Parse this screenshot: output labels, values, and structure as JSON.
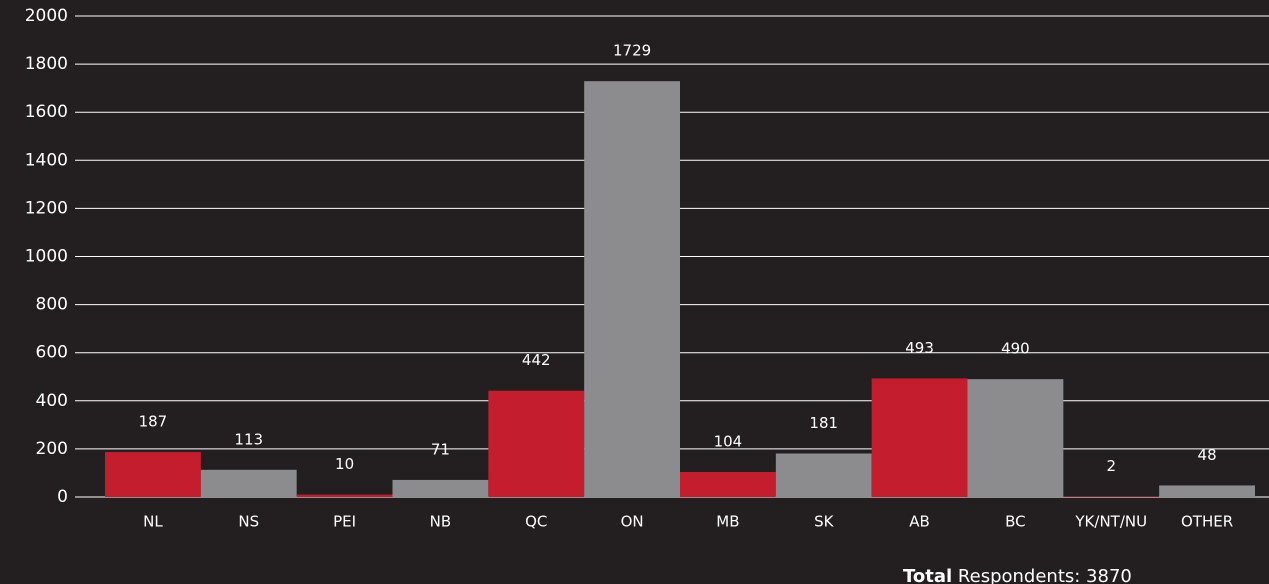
{
  "chart_data": {
    "type": "bar",
    "categories": [
      "NL",
      "NS",
      "PEI",
      "NB",
      "QC",
      "ON",
      "MB",
      "SK",
      "AB",
      "BC",
      "YK/NT/NU",
      "OTHER"
    ],
    "values": [
      187,
      113,
      10,
      71,
      442,
      1729,
      104,
      181,
      493,
      490,
      2,
      48
    ],
    "colors": [
      "#c41e2e",
      "#8c8c8e",
      "#c41e2e",
      "#8c8c8e",
      "#c41e2e",
      "#8c8c8e",
      "#c41e2e",
      "#8c8c8e",
      "#c41e2e",
      "#8c8c8e",
      "#c41e2e",
      "#8c8c8e"
    ],
    "ylim": [
      0,
      2000
    ],
    "yticks": [
      0,
      200,
      400,
      600,
      800,
      1000,
      1200,
      1400,
      1600,
      1800,
      2000
    ],
    "grid": true,
    "note": {
      "bold": "Total",
      "text": "Respondents: 3870"
    }
  }
}
